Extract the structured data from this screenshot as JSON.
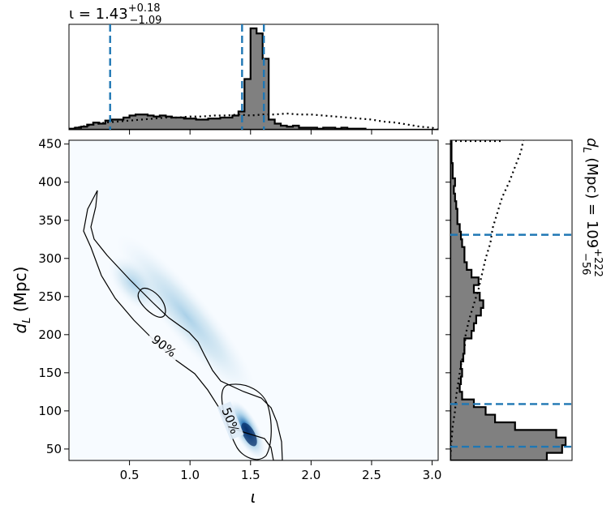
{
  "chart_data": {
    "type": "corner",
    "title_top": {
      "prefix": "ι = ",
      "value": "1.43",
      "upper": "+0.18",
      "lower": "−1.09"
    },
    "title_right": {
      "prefix": "d",
      "sub": "L",
      "mid": " (Mpc) = ",
      "value": "109",
      "upper": "+222",
      "lower": "−56"
    },
    "xlabel": "ι",
    "ylabel": {
      "main": "d",
      "sub": "L",
      "rest": " (Mpc)"
    },
    "xlim": [
      0.0,
      3.05
    ],
    "ylim": [
      35,
      455
    ],
    "xticks": [
      0.5,
      1.0,
      1.5,
      2.0,
      2.5,
      3.0
    ],
    "xtick_labels": [
      "0.5",
      "1.0",
      "1.5",
      "2.0",
      "2.5",
      "3.0"
    ],
    "yticks": [
      50,
      100,
      150,
      200,
      250,
      300,
      350,
      400,
      450
    ],
    "ytick_labels": [
      "50",
      "100",
      "150",
      "200",
      "250",
      "300",
      "350",
      "400",
      "450"
    ],
    "contour_labels": [
      "90%",
      "50%"
    ],
    "iota_quantiles": [
      0.34,
      1.43,
      1.61
    ],
    "dl_quantiles": [
      53,
      109,
      331
    ],
    "iota_histogram": {
      "bin_edges": [
        0.0,
        0.05,
        0.1,
        0.15,
        0.2,
        0.25,
        0.3,
        0.35,
        0.4,
        0.45,
        0.5,
        0.55,
        0.6,
        0.65,
        0.7,
        0.75,
        0.8,
        0.85,
        0.9,
        0.95,
        1.0,
        1.05,
        1.1,
        1.15,
        1.2,
        1.25,
        1.3,
        1.35,
        1.4,
        1.45,
        1.5,
        1.55,
        1.6,
        1.65,
        1.7,
        1.75,
        1.8,
        1.85,
        1.9,
        1.95,
        2.0,
        2.05,
        2.1,
        2.15,
        2.2,
        2.25,
        2.3,
        2.35,
        2.4,
        2.45,
        2.5,
        2.55,
        2.6,
        2.65,
        2.7,
        2.75,
        2.8,
        2.85,
        2.9,
        2.95,
        3.0,
        3.05
      ],
      "counts": [
        0.01,
        0.02,
        0.03,
        0.05,
        0.07,
        0.06,
        0.09,
        0.1,
        0.1,
        0.12,
        0.14,
        0.15,
        0.15,
        0.14,
        0.13,
        0.14,
        0.13,
        0.12,
        0.12,
        0.11,
        0.11,
        0.1,
        0.1,
        0.11,
        0.11,
        0.12,
        0.12,
        0.14,
        0.18,
        0.5,
        1.0,
        0.95,
        0.7,
        0.1,
        0.06,
        0.04,
        0.03,
        0.04,
        0.02,
        0.02,
        0.02,
        0.01,
        0.02,
        0.02,
        0.01,
        0.02,
        0.01,
        0.01,
        0.01,
        0.0,
        0.0,
        0.0,
        0.0,
        0.0,
        0.0,
        0.0,
        0.0,
        0.0,
        0.0,
        0.0,
        0.0
      ]
    },
    "iota_prior": {
      "x": [
        0.0,
        0.1,
        0.2,
        0.3,
        0.4,
        0.5,
        0.6,
        0.7,
        0.8,
        0.9,
        1.0,
        1.1,
        1.2,
        1.3,
        1.4,
        1.5,
        1.6,
        1.7,
        1.8,
        1.9,
        2.0,
        2.1,
        2.2,
        2.3,
        2.4,
        2.5,
        2.6,
        2.7,
        2.8,
        2.9,
        3.0,
        3.05
      ],
      "y": [
        0.0,
        0.03,
        0.05,
        0.07,
        0.08,
        0.09,
        0.1,
        0.11,
        0.12,
        0.12,
        0.13,
        0.13,
        0.14,
        0.14,
        0.15,
        0.14,
        0.15,
        0.15,
        0.16,
        0.15,
        0.15,
        0.14,
        0.13,
        0.12,
        0.11,
        0.1,
        0.08,
        0.07,
        0.05,
        0.03,
        0.02,
        0.0
      ]
    },
    "dl_histogram": {
      "bin_edges": [
        35,
        45,
        55,
        65,
        75,
        85,
        95,
        105,
        115,
        125,
        135,
        145,
        155,
        165,
        175,
        185,
        195,
        205,
        215,
        225,
        235,
        245,
        255,
        265,
        275,
        285,
        295,
        305,
        315,
        325,
        335,
        345,
        355,
        365,
        375,
        385,
        395,
        405,
        415,
        425,
        435,
        445,
        455
      ],
      "counts": [
        0.82,
        0.95,
        0.98,
        0.9,
        0.55,
        0.38,
        0.3,
        0.2,
        0.1,
        0.08,
        0.09,
        0.1,
        0.09,
        0.11,
        0.12,
        0.12,
        0.18,
        0.2,
        0.22,
        0.26,
        0.28,
        0.25,
        0.2,
        0.24,
        0.18,
        0.14,
        0.12,
        0.12,
        0.1,
        0.09,
        0.08,
        0.06,
        0.06,
        0.05,
        0.04,
        0.03,
        0.04,
        0.02,
        0.02,
        0.01,
        0.01,
        0.01
      ]
    },
    "dl_prior": {
      "y": [
        40,
        60,
        80,
        100,
        120,
        140,
        160,
        180,
        200,
        220,
        240,
        260,
        280,
        300,
        320,
        340,
        360,
        380,
        400,
        420,
        440,
        455
      ],
      "x": [
        0.0,
        0.01,
        0.02,
        0.04,
        0.05,
        0.07,
        0.09,
        0.12,
        0.13,
        0.16,
        0.2,
        0.24,
        0.27,
        0.3,
        0.34,
        0.36,
        0.4,
        0.44,
        0.5,
        0.55,
        0.6,
        0.62
      ]
    }
  }
}
